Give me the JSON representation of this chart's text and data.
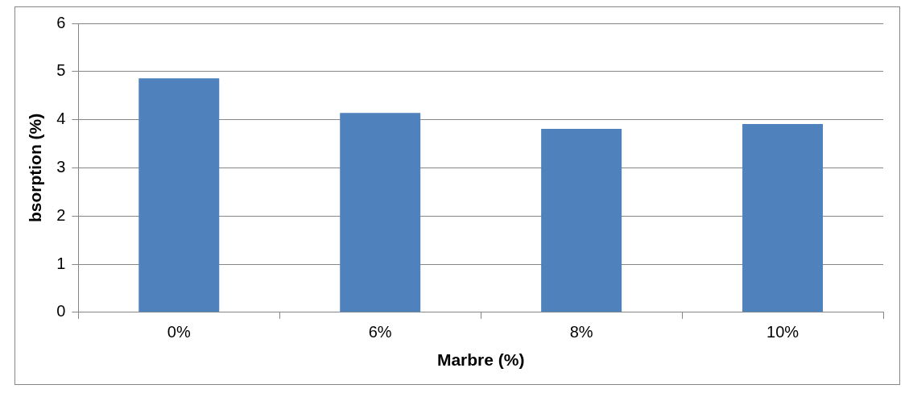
{
  "chart_data": {
    "type": "bar",
    "xlabel": "Marbre (%)",
    "ylabel": "bsorption (%)",
    "categories": [
      "0%",
      "6%",
      "8%",
      "10%"
    ],
    "values": [
      4.86,
      4.14,
      3.81,
      3.91
    ],
    "color": "#4f81bd",
    "ylim": [
      0,
      6
    ],
    "yticks": [
      0,
      1,
      2,
      3,
      4,
      5,
      6
    ],
    "grid": "y",
    "legend": false
  }
}
